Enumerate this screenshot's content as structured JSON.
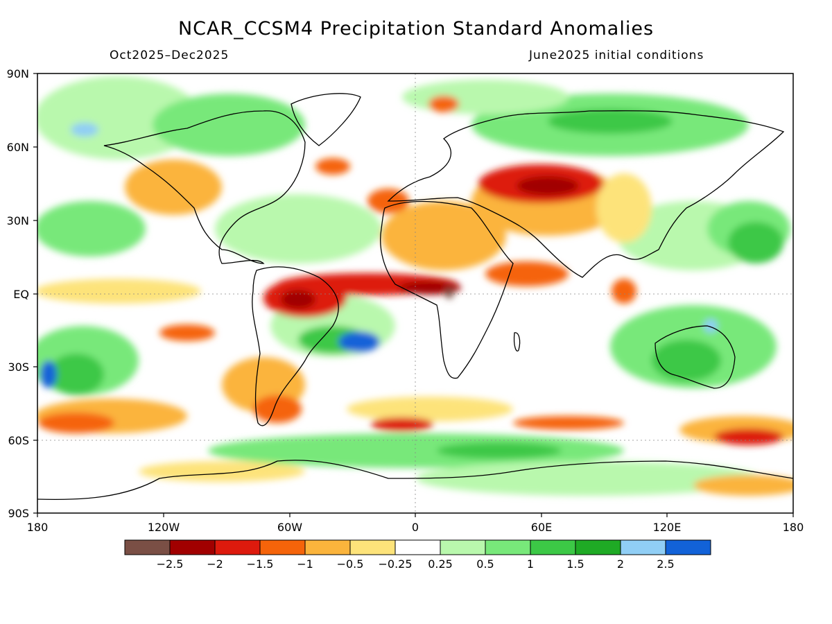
{
  "title": "NCAR_CCSM4 Precipitation Standard Anomalies",
  "subtitle_left": "Oct2025–Dec2025",
  "subtitle_right": "June2025 initial conditions",
  "lat_labels": [
    "90N",
    "60N",
    "30N",
    "EQ",
    "30S",
    "60S",
    "90S"
  ],
  "lon_labels": [
    "180",
    "120W",
    "60W",
    "0",
    "60E",
    "120E",
    "180"
  ],
  "colorbar": {
    "colors": [
      "#7a4f45",
      "#a10000",
      "#dd1a0d",
      "#f5640a",
      "#fbb43c",
      "#fde37a",
      "#ffffff",
      "#b9f8ad",
      "#78e87a",
      "#3cc846",
      "#1faa25",
      "#90cef5",
      "#1262d8"
    ],
    "labels": [
      "−2.5",
      "−2",
      "−1.5",
      "−1",
      "−0.5",
      "−0.25",
      "0.25",
      "0.5",
      "1",
      "1.5",
      "2",
      "2.5"
    ]
  }
}
